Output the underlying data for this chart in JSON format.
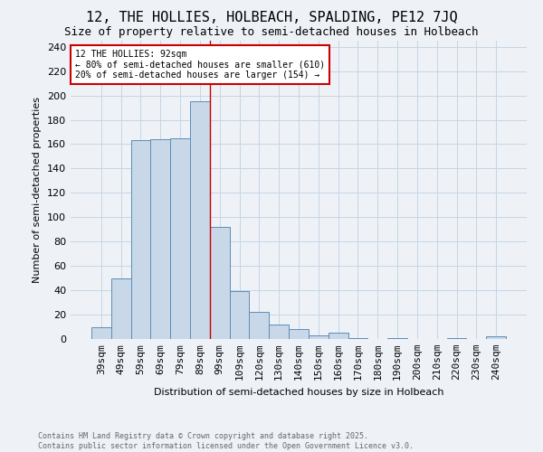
{
  "title": "12, THE HOLLIES, HOLBEACH, SPALDING, PE12 7JQ",
  "subtitle": "Size of property relative to semi-detached houses in Holbeach",
  "xlabel": "Distribution of semi-detached houses by size in Holbeach",
  "ylabel": "Number of semi-detached properties",
  "categories": [
    "39sqm",
    "49sqm",
    "59sqm",
    "69sqm",
    "79sqm",
    "89sqm",
    "99sqm",
    "109sqm",
    "120sqm",
    "130sqm",
    "140sqm",
    "150sqm",
    "160sqm",
    "170sqm",
    "180sqm",
    "190sqm",
    "200sqm",
    "210sqm",
    "220sqm",
    "230sqm",
    "240sqm"
  ],
  "values": [
    10,
    50,
    163,
    164,
    165,
    195,
    92,
    39,
    22,
    12,
    8,
    3,
    5,
    1,
    0,
    1,
    0,
    0,
    1,
    0,
    2
  ],
  "bar_color": "#c8d8e8",
  "bar_edge_color": "#5b8db8",
  "grid_color": "#c5d5e5",
  "vline_x": 5.5,
  "vline_color": "#cc0000",
  "annotation_text": "12 THE HOLLIES: 92sqm\n← 80% of semi-detached houses are smaller (610)\n20% of semi-detached houses are larger (154) →",
  "annotation_box_color": "#cc0000",
  "footer_text": "Contains HM Land Registry data © Crown copyright and database right 2025.\nContains public sector information licensed under the Open Government Licence v3.0.",
  "ylim": [
    0,
    245
  ],
  "yticks": [
    0,
    20,
    40,
    60,
    80,
    100,
    120,
    140,
    160,
    180,
    200,
    220,
    240
  ],
  "background_color": "#eef2f7",
  "title_fontsize": 11,
  "subtitle_fontsize": 9,
  "ylabel_fontsize": 8,
  "xlabel_fontsize": 8,
  "tick_fontsize": 8,
  "annot_fontsize": 7
}
